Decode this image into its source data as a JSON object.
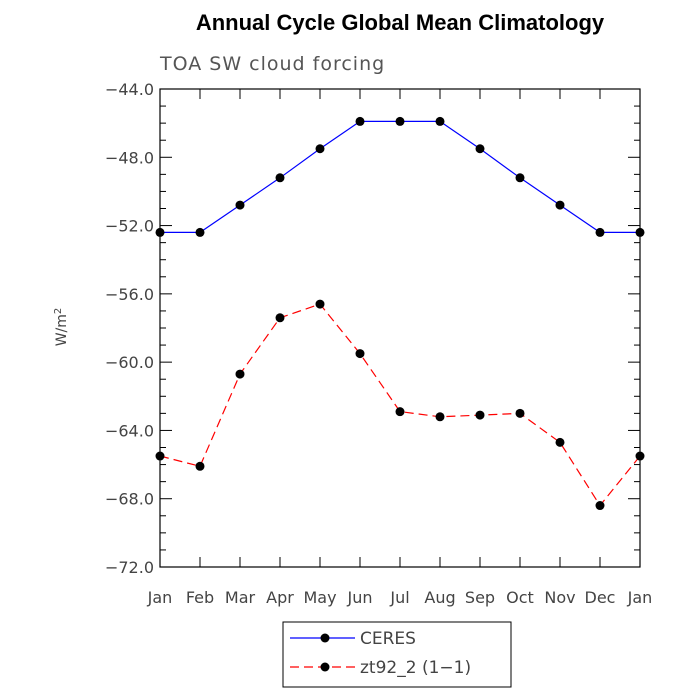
{
  "chart_data": {
    "type": "line",
    "title": "Annual Cycle Global Mean Climatology",
    "subtitle": "TOA SW cloud forcing",
    "ylabel": "W/m",
    "ylabel_sup": "2",
    "xlabel": "",
    "categories": [
      "Jan",
      "Feb",
      "Mar",
      "Apr",
      "May",
      "Jun",
      "Jul",
      "Aug",
      "Sep",
      "Oct",
      "Nov",
      "Dec",
      "Jan"
    ],
    "ylim": [
      -72.0,
      -44.0
    ],
    "yticks": [
      -44.0,
      -48.0,
      -52.0,
      -56.0,
      -60.0,
      -64.0,
      -68.0,
      -72.0
    ],
    "ytick_labels": [
      "−44.0",
      "−48.0",
      "−52.0",
      "−56.0",
      "−60.0",
      "−64.0",
      "−68.0",
      "−72.0"
    ],
    "series": [
      {
        "name": "CERES",
        "color": "#0000ff",
        "dash": "solid",
        "values": [
          -52.4,
          -52.4,
          -50.8,
          -49.2,
          -47.5,
          -45.9,
          -45.9,
          -45.9,
          -47.5,
          -49.2,
          -50.8,
          -52.4,
          -52.4
        ]
      },
      {
        "name": "zt92_2 (1−1)",
        "color": "#ff0000",
        "dash": "dashed",
        "values": [
          -65.5,
          -66.1,
          -60.7,
          -57.4,
          -56.6,
          -59.5,
          -62.9,
          -63.2,
          -63.1,
          -63.0,
          -64.7,
          -68.4,
          -65.5
        ]
      }
    ],
    "grid": false,
    "legend_position": "bottom-center"
  }
}
